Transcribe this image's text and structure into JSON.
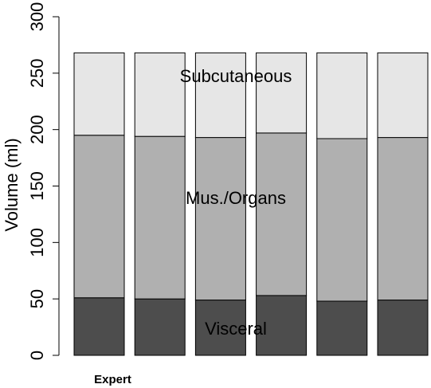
{
  "chart_data": {
    "type": "bar",
    "stacked": true,
    "categories": [
      "Expert",
      "",
      "",
      "",
      "",
      ""
    ],
    "series": [
      {
        "name": "Visceral",
        "color": "#4d4d4d",
        "values": [
          51,
          50,
          49,
          53,
          48,
          49
        ]
      },
      {
        "name": "Mus./Organs",
        "color": "#b0b0b0",
        "values": [
          144,
          144,
          144,
          144,
          144,
          144
        ]
      },
      {
        "name": "Subcutaneous",
        "color": "#e6e6e6",
        "values": [
          73,
          74,
          75,
          71,
          76,
          75
        ]
      }
    ],
    "title": "",
    "xlabel": "",
    "ylabel": "Volume (ml)",
    "ylim": [
      0,
      300
    ],
    "yticks": [
      0,
      50,
      100,
      150,
      200,
      250,
      300
    ],
    "grid": false,
    "annotations": [
      "Subcutaneous",
      "Mus./Organs",
      "Visceral"
    ]
  }
}
